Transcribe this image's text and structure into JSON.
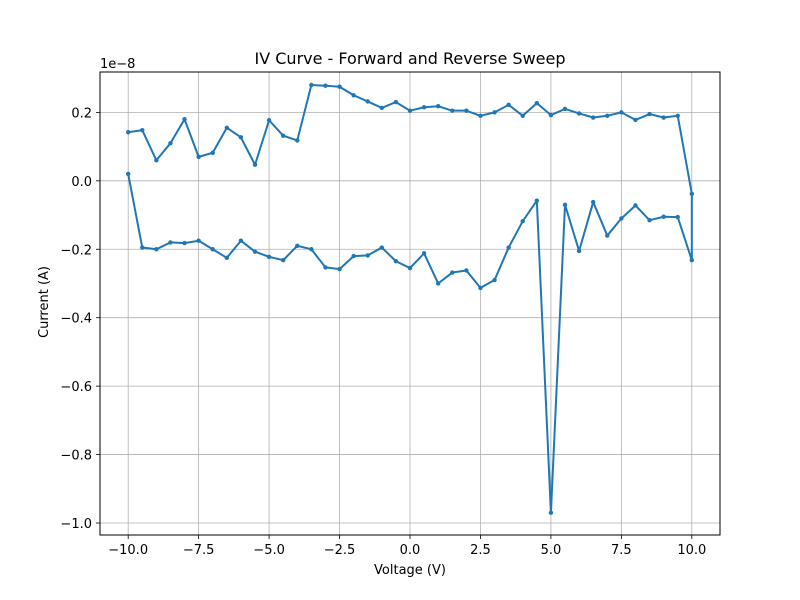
{
  "chart_data": {
    "type": "line",
    "title": "IV Curve - Forward and Reverse Sweep",
    "xlabel": "Voltage (V)",
    "ylabel": "Current (A)",
    "y_offset_label": "1e−8",
    "xlim": [
      -11.0,
      11.0
    ],
    "ylim": [
      -1.035,
      0.318
    ],
    "x_ticks": [
      -10.0,
      -7.5,
      -5.0,
      -2.5,
      0.0,
      2.5,
      5.0,
      7.5,
      10.0
    ],
    "x_tick_labels": [
      "−10.0",
      "−7.5",
      "−5.0",
      "−2.5",
      "0.0",
      "2.5",
      "5.0",
      "7.5",
      "10.0"
    ],
    "y_ticks": [
      -1.0,
      -0.8,
      -0.6,
      -0.4,
      -0.2,
      0.0,
      0.2
    ],
    "y_tick_labels": [
      "−1.0",
      "−0.8",
      "−0.6",
      "−0.4",
      "−0.2",
      "0.0",
      "0.2"
    ],
    "grid": true,
    "color": "#1f77b4",
    "series": [
      {
        "x": [
          -10.0,
          -9.5,
          -9.0,
          -8.5,
          -8.0,
          -7.5,
          -7.0,
          -6.5,
          -6.0,
          -5.5,
          -5.0,
          -4.5,
          -4.0,
          -3.5,
          -3.0,
          -2.5,
          -2.0,
          -1.5,
          -1.0,
          -0.5,
          0.0,
          0.5,
          1.0,
          1.5,
          2.0,
          2.5,
          3.0,
          3.5,
          4.0,
          4.5,
          5.0,
          5.5,
          6.0,
          6.5,
          7.0,
          7.5,
          8.0,
          8.5,
          9.0,
          9.5,
          10.0,
          10.0,
          9.5,
          9.0,
          8.5,
          8.0,
          7.5,
          7.0,
          6.5,
          6.0,
          5.5,
          5.0,
          4.5,
          4.0,
          3.5,
          3.0,
          2.5,
          2.0,
          1.5,
          1.0,
          0.5,
          0.0,
          -0.5,
          -1.0,
          -1.5,
          -2.0,
          -2.5,
          -3.0,
          -3.5,
          -4.0,
          -4.5,
          -5.0,
          -5.5,
          -6.0,
          -6.5,
          -7.0,
          -7.5,
          -8.0,
          -8.5,
          -9.0,
          -9.5,
          -10.0
        ],
        "y": [
          0.02,
          -0.195,
          -0.2,
          -0.18,
          -0.182,
          -0.175,
          -0.2,
          -0.225,
          -0.175,
          -0.207,
          -0.222,
          -0.232,
          -0.19,
          -0.2,
          -0.253,
          -0.258,
          -0.22,
          -0.218,
          -0.195,
          -0.235,
          -0.255,
          -0.212,
          -0.3,
          -0.268,
          -0.262,
          -0.313,
          -0.29,
          -0.195,
          -0.118,
          -0.058,
          -0.97,
          -0.07,
          -0.205,
          -0.062,
          -0.16,
          -0.11,
          -0.072,
          -0.115,
          -0.105,
          -0.106,
          -0.232,
          -0.038,
          0.19,
          0.185,
          0.195,
          0.178,
          0.2,
          0.19,
          0.185,
          0.197,
          0.21,
          0.192,
          0.227,
          0.19,
          0.222,
          0.2,
          0.19,
          0.205,
          0.205,
          0.218,
          0.215,
          0.205,
          0.23,
          0.213,
          0.232,
          0.25,
          0.275,
          0.278,
          0.28,
          0.118,
          0.132,
          0.177,
          0.047,
          0.127,
          0.155,
          0.082,
          0.07,
          0.18,
          0.11,
          0.06,
          0.148,
          0.142
        ]
      }
    ]
  }
}
